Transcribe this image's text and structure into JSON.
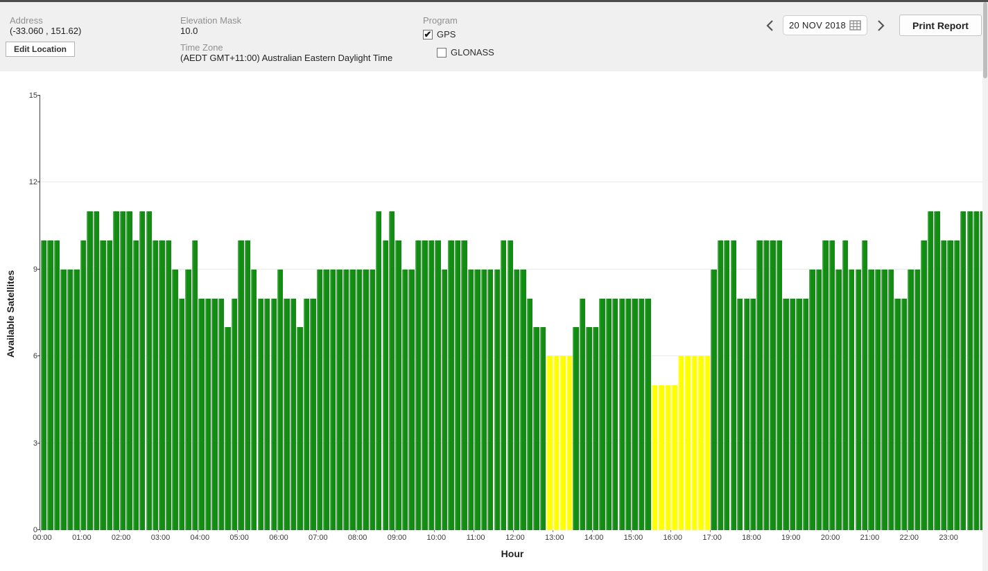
{
  "header": {
    "address": {
      "label": "Address",
      "value": "(-33.060 , 151.62)",
      "edit_button": "Edit Location"
    },
    "elevation_mask": {
      "label": "Elevation Mask",
      "value": "10.0"
    },
    "time_zone": {
      "label": "Time Zone",
      "value": "(AEDT GMT+11:00) Australian Eastern Daylight Time"
    },
    "program": {
      "label": "Program",
      "options": [
        {
          "label": "GPS",
          "checked": true
        },
        {
          "label": "GLONASS",
          "checked": false
        }
      ]
    },
    "date_picker": {
      "value": "20 NOV 2018"
    },
    "print_button": "Print Report"
  },
  "chart_data": {
    "type": "bar",
    "title": "",
    "xlabel": "Hour",
    "ylabel": "Available Satellites",
    "ylim": [
      0,
      15
    ],
    "y_ticks": [
      0,
      3,
      6,
      9,
      12,
      15
    ],
    "grid": "horizontal",
    "legend": "none",
    "bar_interval_minutes": 10,
    "x_tick_labels": [
      "00:00",
      "01:00",
      "02:00",
      "03:00",
      "04:00",
      "05:00",
      "06:00",
      "07:00",
      "08:00",
      "09:00",
      "10:00",
      "11:00",
      "12:00",
      "13:00",
      "14:00",
      "15:00",
      "16:00",
      "17:00",
      "18:00",
      "19:00",
      "20:00",
      "21:00",
      "22:00",
      "23:00"
    ],
    "values": [
      10,
      10,
      10,
      9,
      9,
      9,
      10,
      11,
      11,
      10,
      10,
      11,
      11,
      11,
      10,
      11,
      11,
      10,
      10,
      10,
      9,
      8,
      9,
      10,
      8,
      8,
      8,
      8,
      7,
      8,
      10,
      10,
      9,
      8,
      8,
      8,
      9,
      8,
      8,
      7,
      8,
      8,
      9,
      9,
      9,
      9,
      9,
      9,
      9,
      9,
      9,
      11,
      10,
      11,
      10,
      9,
      9,
      10,
      10,
      10,
      10,
      9,
      10,
      10,
      10,
      9,
      9,
      9,
      9,
      9,
      10,
      10,
      9,
      9,
      8,
      7,
      7,
      6,
      6,
      6,
      6,
      7,
      8,
      7,
      7,
      8,
      8,
      8,
      8,
      8,
      8,
      8,
      8,
      5,
      5,
      5,
      5,
      6,
      6,
      6,
      6,
      6,
      9,
      10,
      10,
      10,
      8,
      8,
      8,
      10,
      10,
      10,
      10,
      8,
      8,
      8,
      8,
      9,
      9,
      10,
      10,
      9,
      10,
      9,
      9,
      10,
      9,
      9,
      9,
      9,
      8,
      8,
      9,
      9,
      10,
      11,
      11,
      10,
      10,
      10,
      11,
      11,
      11,
      11
    ],
    "colors": {
      "green": "#128c12",
      "yellow": "#ffff00",
      "yellow_max_value": 6,
      "gridline": "#e9e9e9"
    },
    "check_glyph": "✔"
  }
}
